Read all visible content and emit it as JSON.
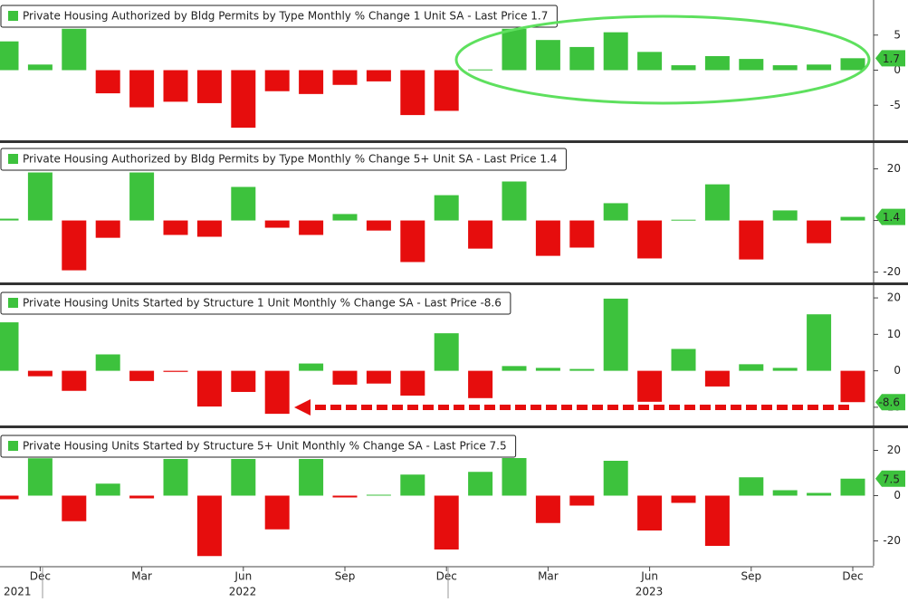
{
  "chart_data": [
    {
      "type": "bar",
      "title": "Private Housing Authorized by Bldg Permits by Type Monthly % Change 1 Unit SA - Last Price 1.7",
      "values": [
        4.1,
        0.8,
        5.9,
        -3.3,
        -5.3,
        -4.5,
        -4.7,
        -8.2,
        -3.0,
        -3.4,
        -2.1,
        -1.6,
        -6.4,
        -5.8,
        0.1,
        5.9,
        4.3,
        3.3,
        5.4,
        2.6,
        0.7,
        2.0,
        1.6,
        0.7,
        0.8,
        1.7
      ],
      "ylim": [
        -10,
        10
      ],
      "yticks": [
        -5,
        0,
        5
      ],
      "up_color": "#3dc23d",
      "down_color": "#e60d0d"
    },
    {
      "type": "bar",
      "title": "Private Housing Authorized by Bldg Permits by Type Monthly % Change 5+ Unit SA - Last Price 1.4",
      "values": [
        0.7,
        18.6,
        -19.3,
        -6.7,
        18.6,
        -5.6,
        -6.3,
        13.0,
        -2.8,
        -5.6,
        2.5,
        -3.9,
        -16.1,
        9.8,
        -10.9,
        15.1,
        -13.7,
        -10.5,
        6.7,
        -14.7,
        0.3,
        14.0,
        -15.1,
        3.9,
        -8.8,
        1.4
      ],
      "ylim": [
        -24,
        30
      ],
      "yticks": [
        -20,
        0,
        20
      ],
      "up_color": "#3dc23d",
      "down_color": "#e60d0d"
    },
    {
      "type": "bar",
      "title": "Private Housing Units Started by Structure 1 Unit Monthly % Change SA - Last Price -8.6",
      "values": [
        13.3,
        -1.5,
        -5.5,
        4.5,
        -2.8,
        -0.3,
        -9.8,
        -5.8,
        -11.8,
        2.0,
        -3.8,
        -3.5,
        -6.8,
        10.3,
        -7.5,
        1.3,
        0.8,
        0.5,
        19.8,
        -8.5,
        6.0,
        -4.3,
        1.8,
        0.8,
        15.5,
        -8.6
      ],
      "ylim": [
        -15,
        23
      ],
      "yticks": [
        -10,
        0,
        10,
        20
      ],
      "up_color": "#3dc23d",
      "down_color": "#e60d0d"
    },
    {
      "type": "bar",
      "title": "Private Housing Units Started by Structure 5+ Unit Monthly % Change SA - Last Price 7.5",
      "values": [
        -1.6,
        16.5,
        -11.3,
        5.3,
        -1.2,
        16.2,
        -26.7,
        16.2,
        -14.9,
        16.2,
        -0.8,
        0.4,
        9.3,
        -23.8,
        10.5,
        16.6,
        -12.1,
        -4.4,
        15.4,
        -15.4,
        -3.2,
        -22.2,
        8.1,
        2.4,
        1.2,
        7.5
      ],
      "ylim": [
        -31,
        29
      ],
      "yticks": [
        -20,
        0,
        20
      ],
      "up_color": "#3dc23d",
      "down_color": "#e60d0d"
    }
  ],
  "x_axis": {
    "categories": [
      null,
      "Dec",
      null,
      null,
      "Mar",
      null,
      null,
      "Jun",
      null,
      null,
      "Sep",
      null,
      null,
      "Dec",
      null,
      null,
      "Mar",
      null,
      null,
      "Jun",
      null,
      null,
      "Sep",
      null,
      null,
      "Dec"
    ],
    "years": [
      "2021",
      "2022",
      "2023"
    ]
  }
}
